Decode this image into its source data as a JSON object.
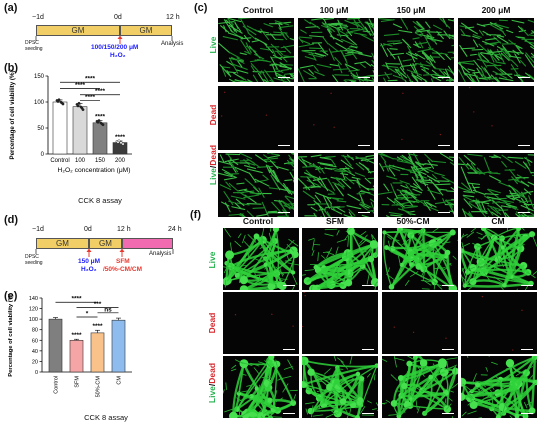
{
  "panel_a": {
    "label": "(a)",
    "t_start": "−1d",
    "t_mid": "0d",
    "t_end": "12 h",
    "seg1": "GM",
    "seg2": "GM",
    "seeding": "DPSC\nseeding",
    "treat_line1": "100/150/200 μM",
    "treat_line2": "H₂O₂",
    "analysis": "Analysis",
    "colors": {
      "gm": "#f2cf66",
      "arrow": "#e8392f",
      "treat": "#1a1aff"
    }
  },
  "panel_b": {
    "label": "(b)",
    "caption": "CCK 8 assay",
    "chart_data": {
      "type": "bar",
      "categories": [
        "Control",
        "100",
        "150",
        "200"
      ],
      "values": [
        100,
        91,
        60,
        22
      ],
      "errors": [
        4,
        6,
        4,
        3
      ],
      "bar_colors": [
        "#ffffff",
        "#d9d9d9",
        "#808080",
        "#3b3b3b"
      ],
      "ylabel": "Percentage of cell viability (%)",
      "xlabel": "H₂O₂ concentration (μM)",
      "ylim": [
        0,
        150
      ],
      "yticks": [
        0,
        50,
        100,
        150
      ],
      "point_labels": [
        "",
        "",
        "****",
        "****"
      ],
      "brackets": [
        {
          "from": 0,
          "to": 3,
          "level": 138,
          "label": "****"
        },
        {
          "from": 0,
          "to": 2,
          "level": 126,
          "label": "****"
        },
        {
          "from": 1,
          "to": 3,
          "level": 114,
          "label": "****"
        },
        {
          "from": 1,
          "to": 2,
          "level": 103,
          "label": "****"
        }
      ]
    }
  },
  "panel_c": {
    "label": "(c)",
    "columns": [
      "Control",
      "100 μM",
      "150 μM",
      "200 μM"
    ],
    "rows": [
      {
        "label": "Live",
        "color": "#22b24c"
      },
      {
        "label": "Dead",
        "color": "#d7262b"
      },
      {
        "label_a": "Live",
        "label_sep": "/",
        "label_b": "Dead",
        "color_a": "#22b24c",
        "color_b": "#d7262b"
      }
    ]
  },
  "panel_d": {
    "label": "(d)",
    "t_start": "−1d",
    "t_mid": "0d",
    "t_12": "12 h",
    "t_end": "24 h",
    "seg1": "GM",
    "seg2": "GM",
    "seeding": "DPSC\nseeding",
    "treat_line1": "150 μM",
    "treat_line2": "H₂O₂",
    "sfm_line1": "SFM",
    "sfm_line2": "/50%-CM/CM",
    "analysis": "Analysis",
    "colors": {
      "gm": "#f2cf66",
      "pink": "#f06bb0",
      "arrow": "#e8392f",
      "treat": "#1a1aff",
      "sfm": "#e8392f"
    }
  },
  "panel_e": {
    "label": "(e)",
    "caption": "CCK 8 assay",
    "chart_data": {
      "type": "bar",
      "categories": [
        "Control",
        "SFM",
        "50%-CM",
        "CM"
      ],
      "values": [
        100,
        60,
        74,
        98
      ],
      "errors": [
        3,
        2,
        5,
        4
      ],
      "bar_colors": [
        "#7f7f7f",
        "#f5a5a5",
        "#f8c28a",
        "#8fbcef"
      ],
      "ylabel": "Percentage of cell viability (%)",
      "ylim": [
        0,
        140
      ],
      "yticks": [
        0,
        20,
        40,
        60,
        80,
        100,
        120,
        140
      ],
      "point_labels": [
        "",
        "****",
        "****",
        ""
      ],
      "brackets": [
        {
          "from": 0,
          "to": 2,
          "level": 132,
          "label": "****"
        },
        {
          "from": 1,
          "to": 3,
          "level": 122,
          "label": "***"
        },
        {
          "from": 1,
          "to": 2,
          "level": 104,
          "label": "*"
        },
        {
          "from": 2,
          "to": 3,
          "level": 112,
          "label": "ns"
        }
      ]
    }
  },
  "panel_f": {
    "label": "(f)",
    "columns": [
      "Control",
      "SFM",
      "50%-CM",
      "CM"
    ],
    "rows": [
      {
        "label": "Live",
        "color": "#22b24c"
      },
      {
        "label": "Dead",
        "color": "#d7262b"
      },
      {
        "label_a": "Live",
        "label_sep": "/",
        "label_b": "Dead",
        "color_a": "#22b24c",
        "color_b": "#d7262b"
      }
    ]
  }
}
